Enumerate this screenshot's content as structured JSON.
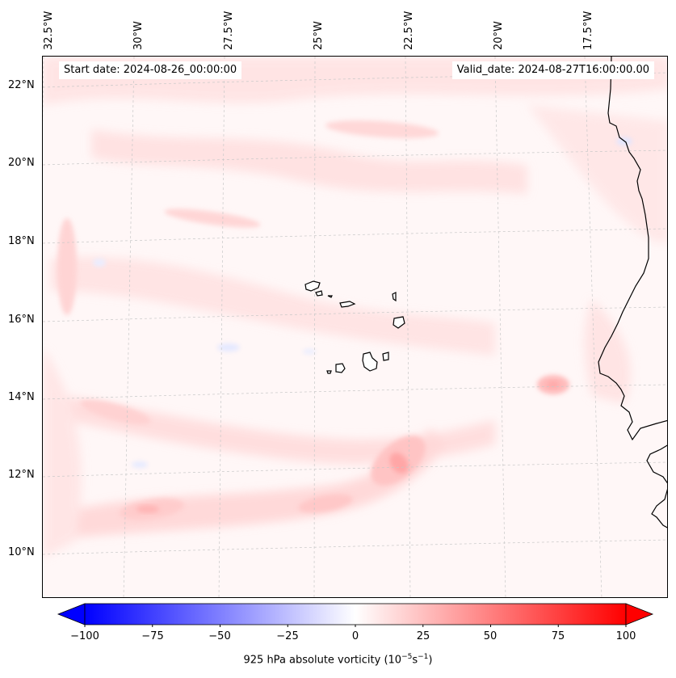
{
  "map": {
    "region": "Eastern tropical Atlantic off West Africa (Cape Verde Islands)",
    "start_date": "Start date: 2024-08-26_00:00:00",
    "valid_date": "Valid_date: 2024-08-27T16:00:00.00",
    "longitude_labels": [
      "32.5°W",
      "30°W",
      "27.5°W",
      "25°W",
      "22.5°W",
      "20°W",
      "17.5°W"
    ],
    "latitude_labels": [
      "22°N",
      "20°N",
      "18°N",
      "16°N",
      "14°N",
      "12°N",
      "10°N"
    ],
    "field": "925 hPa absolute vorticity",
    "colors": {
      "background": "#fff7f7",
      "light_pink": "#ffdede",
      "medium_pink": "#ffc4c4",
      "strong_pink": "#ffa6a6",
      "light_blue": "#e4e8ff",
      "coast": "#000000",
      "grid": "#c8c8c8"
    }
  },
  "colorbar": {
    "label": "925 hPa absolute vorticity (10",
    "label_exp1": "−5",
    "label_mid": "s",
    "label_exp2": "−1",
    "label_end": ")",
    "ticks": [
      "−100",
      "−75",
      "−50",
      "−25",
      "0",
      "25",
      "50",
      "75",
      "100"
    ],
    "min": -100,
    "max": 100,
    "cmap": "bwr"
  }
}
